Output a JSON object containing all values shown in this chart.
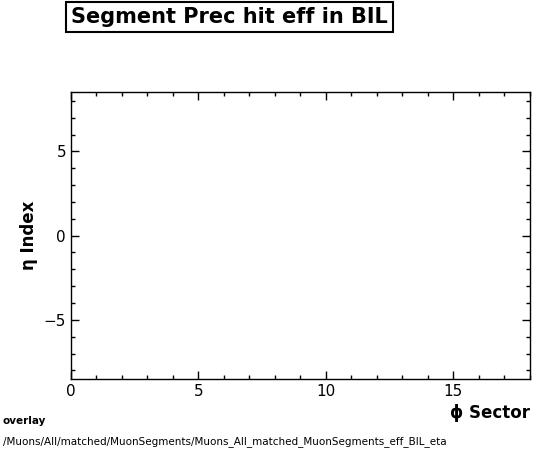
{
  "title": "Segment Prec hit eff in BIL",
  "xlabel": "ϕ Sector",
  "ylabel": "η Index",
  "xlim": [
    0,
    18
  ],
  "ylim": [
    -8.5,
    8.5
  ],
  "xticks": [
    0,
    5,
    10,
    15
  ],
  "yticks": [
    -5,
    0,
    5
  ],
  "bottom_text_line1": "overlay",
  "bottom_text_line2": "/Muons/All/matched/MuonSegments/Muons_All_matched_MuonSegments_eff_BIL_eta",
  "background_color": "#ffffff",
  "title_fontsize": 15,
  "label_fontsize": 12,
  "tick_fontsize": 11,
  "bottom_fontsize": 7.5
}
